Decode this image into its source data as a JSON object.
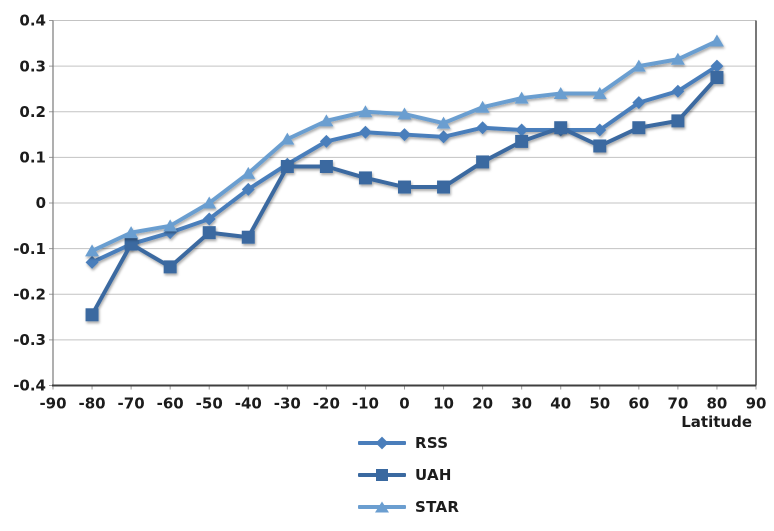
{
  "chart_data": {
    "type": "line",
    "title": "",
    "xlabel": "Latitude",
    "ylabel": "",
    "xlim": [
      -90,
      90
    ],
    "ylim": [
      -0.4,
      0.4
    ],
    "grid": true,
    "legend_position": "bottom-center",
    "xticks": [
      "-90",
      "-80",
      "-70",
      "-60",
      "-50",
      "-40",
      "-30",
      "-20",
      "-10",
      "0",
      "10",
      "20",
      "30",
      "40",
      "50",
      "60",
      "70",
      "80",
      "90"
    ],
    "yticks": [
      "0.4",
      "0.3",
      "0.2",
      "0.1",
      "0",
      "-0.1",
      "-0.2",
      "-0.3",
      "-0.4"
    ],
    "x": [
      -80,
      -70,
      -60,
      -50,
      -40,
      -30,
      -20,
      -10,
      0,
      10,
      20,
      30,
      40,
      50,
      60,
      70,
      80
    ],
    "series": [
      {
        "name": "RSS",
        "marker": "diamond",
        "color": "#4a7ebb",
        "values": [
          -0.13,
          -0.09,
          -0.065,
          -0.035,
          0.03,
          0.085,
          0.135,
          0.155,
          0.15,
          0.145,
          0.165,
          0.16,
          0.16,
          0.16,
          0.22,
          0.245,
          0.3
        ]
      },
      {
        "name": "UAH",
        "marker": "square",
        "color": "#3a69a0",
        "values": [
          -0.245,
          -0.09,
          -0.14,
          -0.065,
          -0.075,
          0.08,
          0.08,
          0.055,
          0.035,
          0.035,
          0.09,
          0.135,
          0.165,
          0.125,
          0.165,
          0.18,
          0.275
        ]
      },
      {
        "name": "STAR",
        "marker": "triangle",
        "color": "#6b9ed0",
        "values": [
          -0.105,
          -0.065,
          -0.05,
          0.0,
          0.065,
          0.14,
          0.18,
          0.2,
          0.195,
          0.175,
          0.21,
          0.23,
          0.24,
          0.24,
          0.3,
          0.315,
          0.355
        ]
      }
    ]
  },
  "style_colors": {
    "gridline": "#c3c3c3",
    "axis_dark": "#3f3f3f",
    "axis_left": "#7a7a7a",
    "tick": "#9a9a9a",
    "text": "#1c1c1c"
  }
}
